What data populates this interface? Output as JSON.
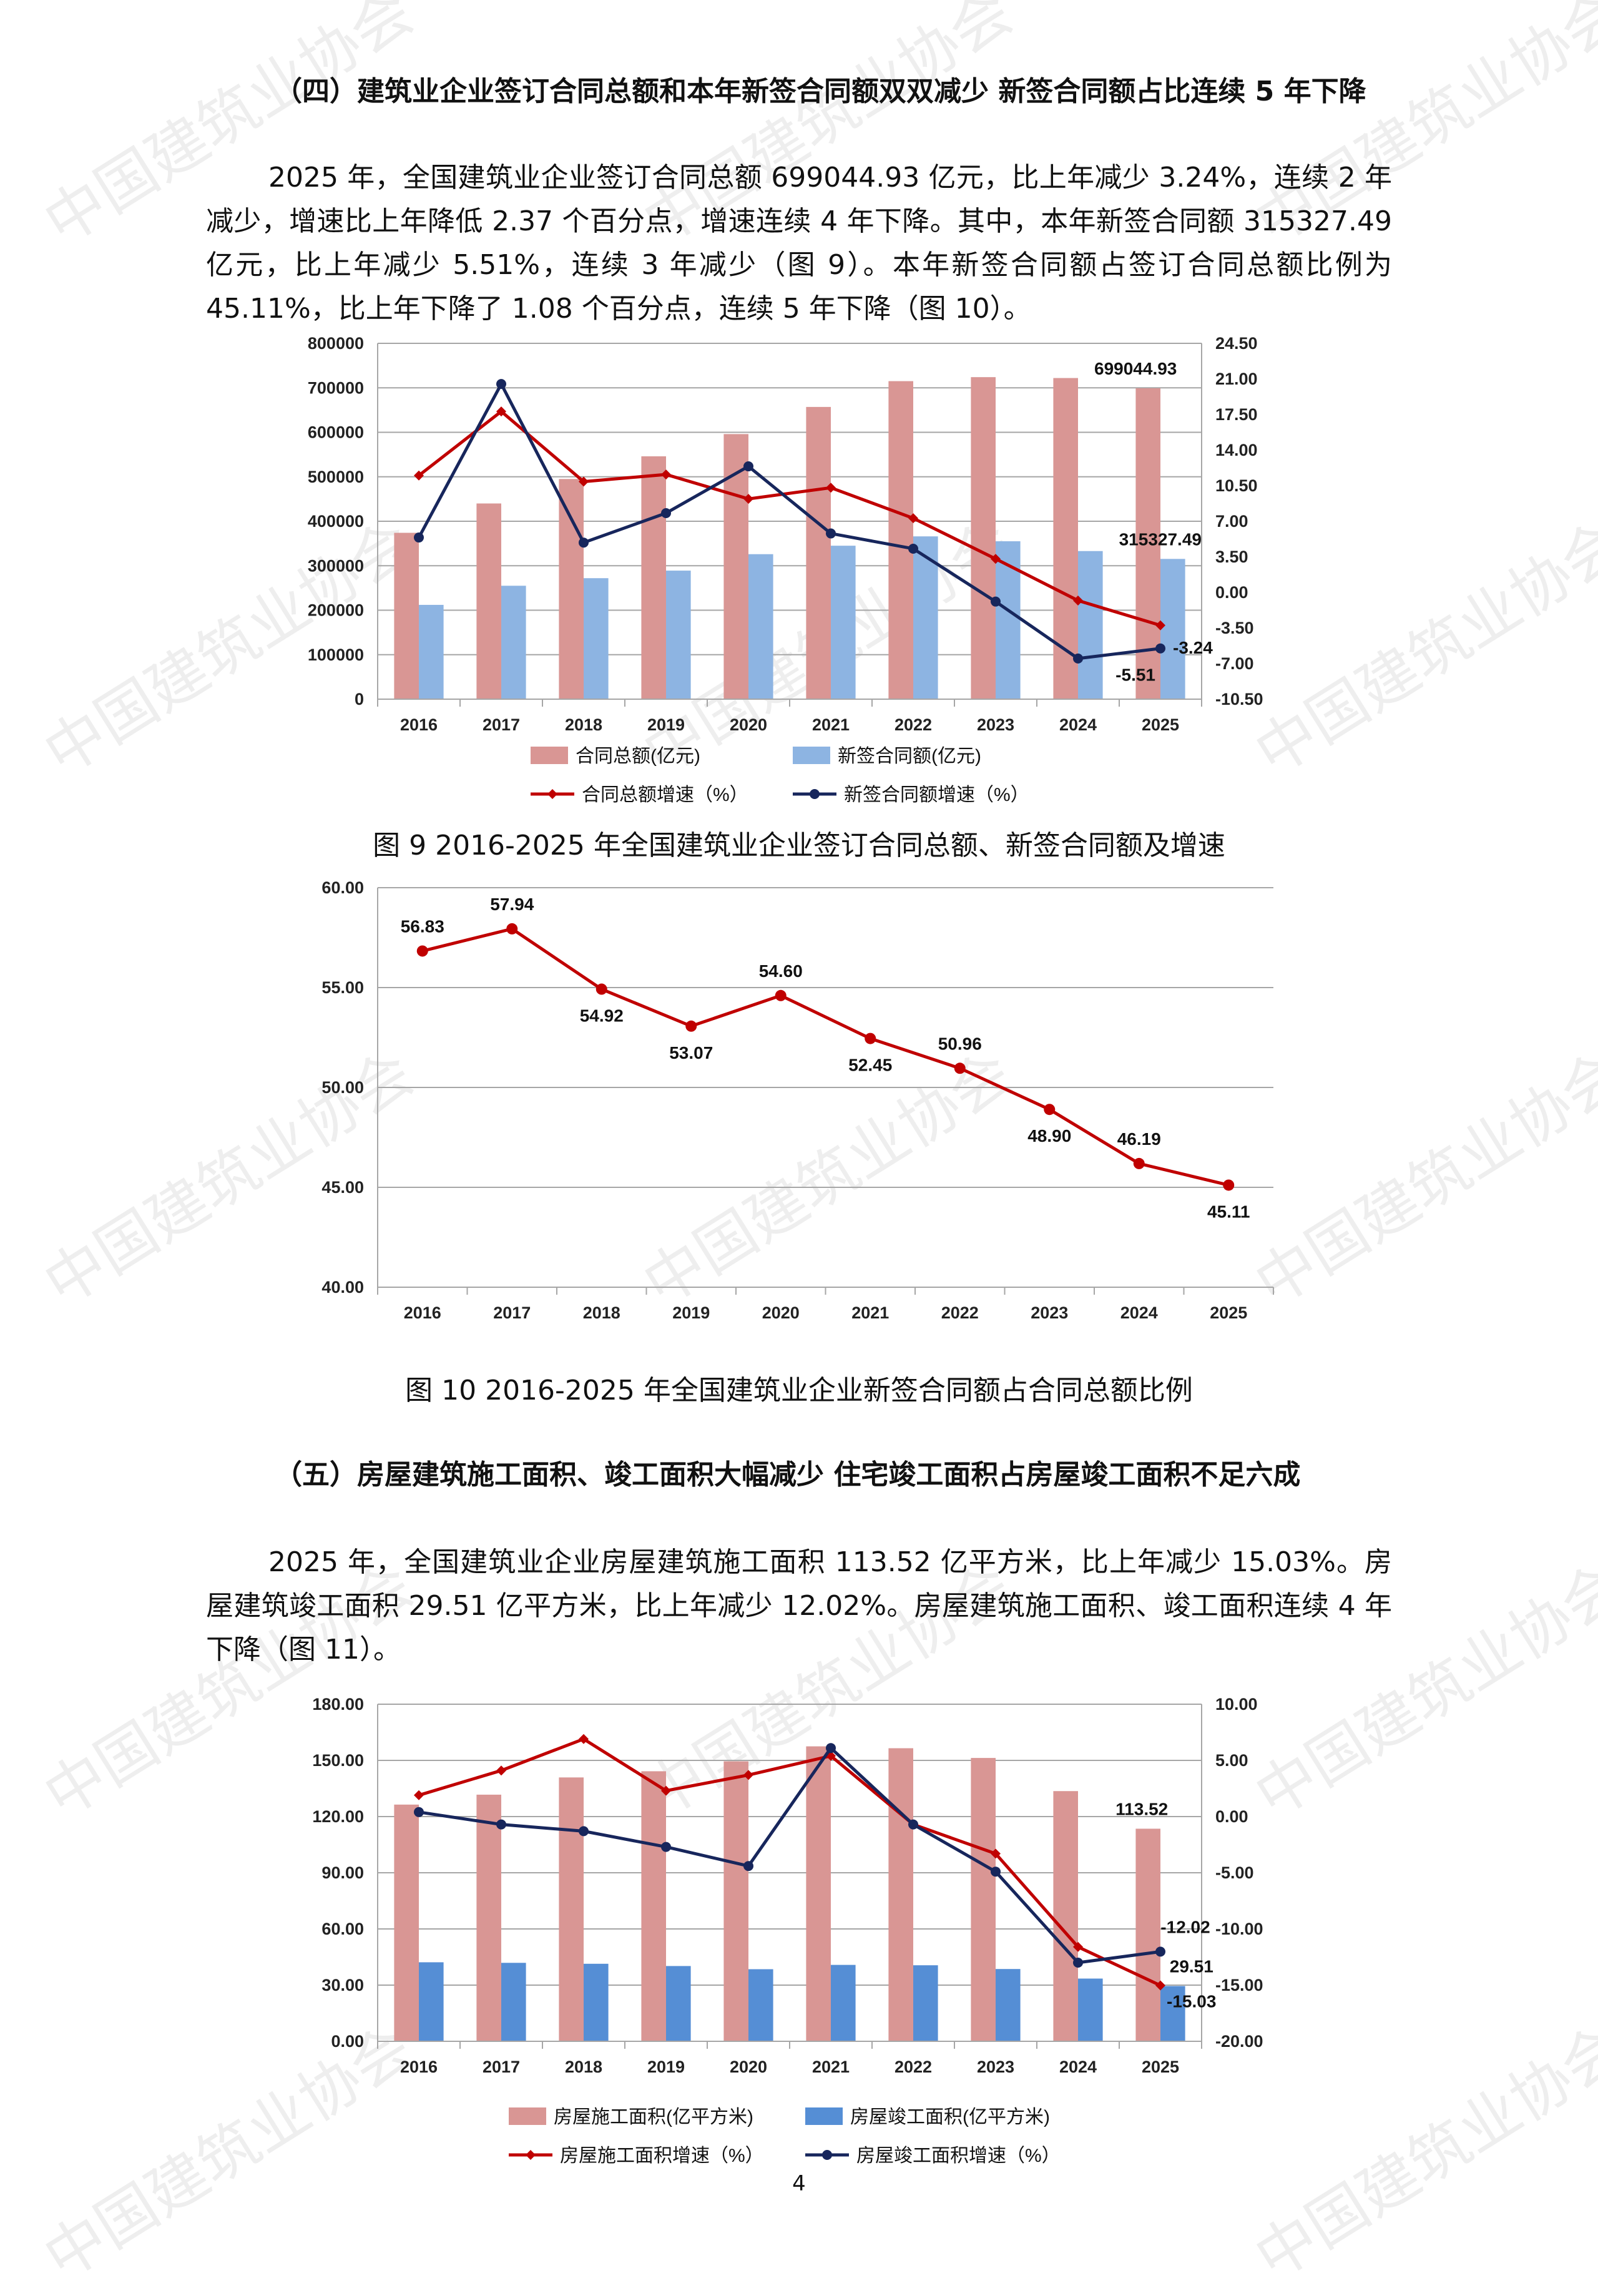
{
  "watermark": "中国建筑业协会",
  "colors": {
    "bar_total": "#d99694",
    "bar_new": "#8db4e2",
    "bar_completed": "#558ed5",
    "line_red": "#c00000",
    "line_navy": "#17265c",
    "grid": "#a6a6a6"
  },
  "section4": {
    "heading": "（四）建筑业企业签订合同总额和本年新签合同额双双减少 新签合同额占比连续 5 年下降",
    "paragraph": "2025 年，全国建筑业企业签订合同总额 699044.93 亿元，比上年减少 3.24%，连续 2 年减少，增速比上年降低 2.37 个百分点，增速连续 4 年下降。其中，本年新签合同额 315327.49 亿元，比上年减少 5.51%，连续 3 年减少（图 9）。本年新签合同额占签订合同总额比例为 45.11%，比上年下降了 1.08 个百分点，连续 5 年下降（图 10）。"
  },
  "figure9": {
    "caption": "图 9 2016-2025 年全国建筑业企业签订合同总额、新签合同额及增速"
  },
  "figure10": {
    "caption": "图 10 2016-2025 年全国建筑业企业新签合同额占合同总额比例"
  },
  "section5": {
    "heading": "（五）房屋建筑施工面积、竣工面积大幅减少 住宅竣工面积占房屋竣工面积不足六成",
    "paragraph": "2025 年，全国建筑业企业房屋建筑施工面积 113.52 亿平方米，比上年减少 15.03%。房屋建筑竣工面积 29.51 亿平方米，比上年减少 12.02%。房屋建筑施工面积、竣工面积连续 4 年下降（图 11）。"
  },
  "page_number": "4",
  "chart_data": [
    {
      "id": "figure9",
      "type": "bar+line",
      "categories": [
        "2016",
        "2017",
        "2018",
        "2019",
        "2020",
        "2021",
        "2022",
        "2023",
        "2024",
        "2025"
      ],
      "series": [
        {
          "name": "合同总额(亿元)",
          "type": "bar",
          "axis": "left",
          "values": [
            374000,
            440000,
            495000,
            546000,
            596000,
            657000,
            715000,
            724000,
            722000,
            699044.93
          ]
        },
        {
          "name": "新签合同额(亿元)",
          "type": "bar",
          "axis": "left",
          "values": [
            212000,
            255000,
            272000,
            289000,
            326000,
            345000,
            366000,
            355000,
            333000,
            315327.49
          ]
        },
        {
          "name": "合同总额增速（%）",
          "type": "line",
          "axis": "right",
          "values": [
            11.5,
            17.8,
            10.9,
            11.6,
            9.2,
            10.3,
            7.3,
            3.3,
            -0.8,
            -3.24
          ]
        },
        {
          "name": "新签合同额增速（%）",
          "type": "line",
          "axis": "right",
          "values": [
            5.4,
            20.5,
            4.9,
            7.8,
            12.4,
            5.8,
            4.3,
            -0.9,
            -6.5,
            -5.51
          ]
        }
      ],
      "data_labels": [
        "699044.93",
        "315327.49",
        "-3.24",
        "-5.51"
      ],
      "y_left": {
        "ticks": [
          "0",
          "100000",
          "200000",
          "300000",
          "400000",
          "500000",
          "600000",
          "700000",
          "800000"
        ],
        "ylim": [
          0,
          800000
        ]
      },
      "y_right": {
        "ticks": [
          "-10.50",
          "-7.00",
          "-3.50",
          "0.00",
          "3.50",
          "7.00",
          "10.50",
          "14.00",
          "17.50",
          "21.00",
          "24.50"
        ],
        "ylim": [
          -10.5,
          24.5
        ]
      },
      "grid": true,
      "legend": "bottom"
    },
    {
      "id": "figure10",
      "type": "line",
      "categories": [
        "2016",
        "2017",
        "2018",
        "2019",
        "2020",
        "2021",
        "2022",
        "2023",
        "2024",
        "2025"
      ],
      "series": [
        {
          "values": [
            56.83,
            57.94,
            54.92,
            53.07,
            54.6,
            52.45,
            50.96,
            48.9,
            46.19,
            45.11
          ]
        }
      ],
      "data_labels": [
        "56.83",
        "57.94",
        "54.92",
        "53.07",
        "54.60",
        "52.45",
        "50.96",
        "48.90",
        "46.19",
        "45.11"
      ],
      "y": {
        "ticks": [
          "40.00",
          "45.00",
          "50.00",
          "55.00",
          "60.00"
        ],
        "ylim": [
          40,
          60
        ]
      },
      "grid": true,
      "legend": "none"
    },
    {
      "id": "figure11",
      "type": "bar+line",
      "categories": [
        "2016",
        "2017",
        "2018",
        "2019",
        "2020",
        "2021",
        "2022",
        "2023",
        "2024",
        "2025"
      ],
      "series": [
        {
          "name": "房屋施工面积(亿平方米)",
          "type": "bar",
          "axis": "left",
          "values": [
            126.4,
            131.7,
            140.9,
            144.2,
            149.5,
            157.5,
            156.5,
            151.3,
            133.6,
            113.52
          ]
        },
        {
          "name": "房屋竣工面积(亿平方米)",
          "type": "bar",
          "axis": "left",
          "values": [
            42.2,
            41.9,
            41.4,
            40.2,
            38.5,
            40.8,
            40.6,
            38.6,
            33.5,
            29.51
          ]
        },
        {
          "name": "房屋施工面积增速（%）",
          "type": "line",
          "axis": "right",
          "values": [
            1.9,
            4.1,
            6.9,
            2.3,
            3.7,
            5.4,
            -0.7,
            -3.3,
            -11.6,
            -15.03
          ]
        },
        {
          "name": "房屋竣工面积增速（%）",
          "type": "line",
          "axis": "right",
          "values": [
            0.4,
            -0.7,
            -1.3,
            -2.7,
            -4.4,
            6.1,
            -0.7,
            -4.9,
            -13.0,
            -12.02
          ]
        }
      ],
      "data_labels": [
        "113.52",
        "29.51",
        "-12.02",
        "-15.03"
      ],
      "y_left": {
        "ticks": [
          "0.00",
          "30.00",
          "60.00",
          "90.00",
          "120.00",
          "150.00",
          "180.00"
        ],
        "ylim": [
          0,
          180
        ]
      },
      "y_right": {
        "ticks": [
          "-20.00",
          "-15.00",
          "-10.00",
          "-5.00",
          "0.00",
          "5.00",
          "10.00"
        ],
        "ylim": [
          -20,
          10
        ]
      },
      "grid": true,
      "legend": "bottom"
    }
  ]
}
